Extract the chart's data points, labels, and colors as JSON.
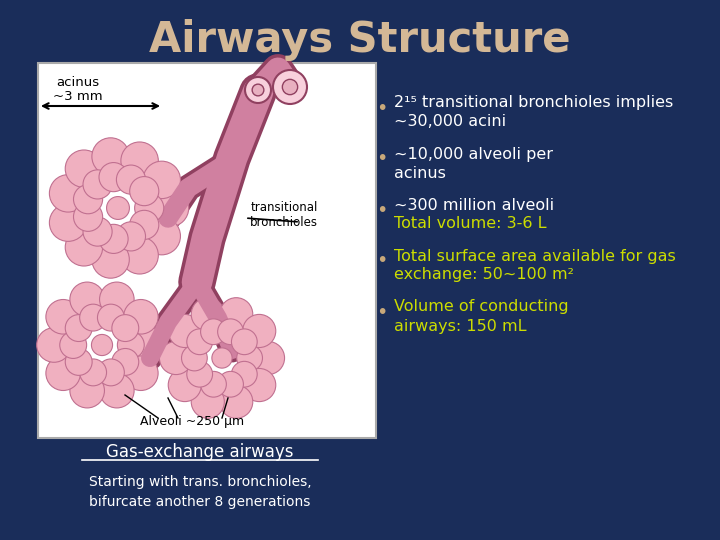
{
  "background_color": "#1a2d5a",
  "title": "Airways Structure",
  "title_color": "#d4b896",
  "title_fontsize": 30,
  "image_box_facecolor": "#ffffff",
  "acinus_label_line1": "acinus",
  "acinus_label_line2": "~3 mm",
  "transitional_label": "transitional\nbronchioles",
  "alveoli_label": "Alveoli ~250 μm",
  "gas_exchange_label": "Gas-exchange airways",
  "bottom_text": "Starting with trans. bronchioles,\nbifurcate another 8 generations",
  "white": "#ffffff",
  "yellow": "#ccdd00",
  "bullet_dot_color": "#c8a87a",
  "alveoli_fill": "#f0b0c0",
  "alveoli_edge": "#c07090",
  "tube_fill": "#d080a0",
  "tube_edge": "#904060",
  "tube_open_fill": "#f8d0dc",
  "tube_open_edge": "#904060",
  "bullets": [
    {
      "lines": [
        "2¹⁵ transitional bronchioles implies",
        "~30,000 acini"
      ],
      "colors": [
        "white",
        "white"
      ]
    },
    {
      "lines": [
        "~10,000 alveoli per",
        "acinus"
      ],
      "colors": [
        "white",
        "white"
      ]
    },
    {
      "lines": [
        "~300 million alveoli",
        "Total volume: 3-6 L"
      ],
      "colors": [
        "white",
        "yellow"
      ]
    },
    {
      "lines": [
        "Total surface area available for gas",
        "exchange: 50~100 m²"
      ],
      "colors": [
        "yellow",
        "yellow"
      ]
    },
    {
      "lines": [
        "Volume of conducting",
        "airways: 150 mL"
      ],
      "colors": [
        "yellow",
        "yellow"
      ]
    }
  ]
}
